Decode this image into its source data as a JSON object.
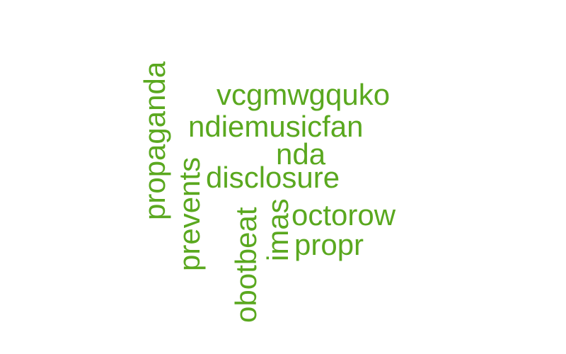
{
  "word_color": "#5aa81f",
  "words": {
    "vcgmwgquko": "vcgmwgquko",
    "ndiemusicfan": "ndiemusicfan",
    "nda": "nda",
    "disclosure": "disclosure",
    "octorow": "octorow",
    "propr": "propr",
    "propaganda": "propaganda",
    "prevents": "prevents",
    "obotbeat": "obotbeat",
    "imas": "imas"
  }
}
